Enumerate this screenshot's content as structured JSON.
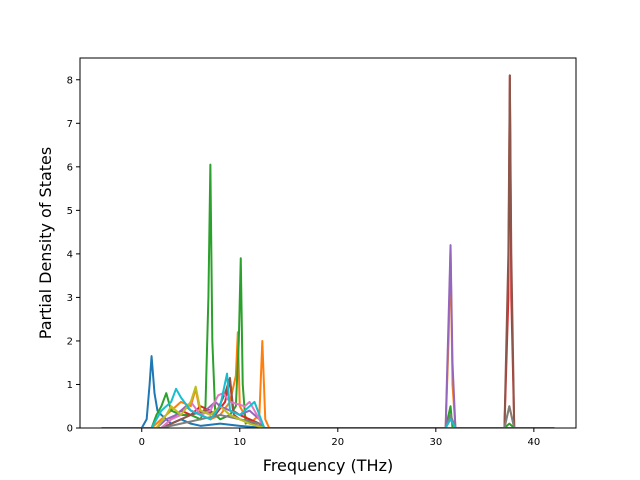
{
  "chart_data": {
    "type": "line",
    "xlabel": "Frequency (THz)",
    "ylabel": "Partial Density of States",
    "xlim": [
      -6.3,
      44.3
    ],
    "ylim": [
      0,
      8.5
    ],
    "x_ticks": [
      0,
      10,
      20,
      30,
      40
    ],
    "y_ticks": [
      0,
      1,
      2,
      3,
      4,
      5,
      6,
      7,
      8
    ],
    "grid": false,
    "legend": "none",
    "series": [
      {
        "color": "#1f77b4",
        "points": [
          [
            -4,
            0
          ],
          [
            0,
            0
          ],
          [
            0.5,
            0.2
          ],
          [
            0.8,
            1.0
          ],
          [
            1.0,
            1.65
          ],
          [
            1.3,
            0.8
          ],
          [
            1.6,
            0.4
          ],
          [
            2.0,
            0.3
          ],
          [
            3.0,
            0.1
          ],
          [
            4.0,
            0.2
          ],
          [
            5.0,
            0.1
          ],
          [
            6.0,
            0.05
          ],
          [
            8.0,
            0.1
          ],
          [
            10.0,
            0.05
          ],
          [
            12.5,
            0.0
          ],
          [
            31.0,
            0
          ],
          [
            31.5,
            0
          ],
          [
            32.0,
            0
          ],
          [
            37.0,
            0
          ],
          [
            37.6,
            0
          ],
          [
            38.0,
            0
          ],
          [
            42,
            0
          ]
        ]
      },
      {
        "color": "#ff7f0e",
        "points": [
          [
            -4,
            0
          ],
          [
            1.0,
            0
          ],
          [
            2.0,
            0.2
          ],
          [
            3.0,
            0.4
          ],
          [
            4.0,
            0.6
          ],
          [
            5.0,
            0.5
          ],
          [
            5.5,
            0.9
          ],
          [
            6.0,
            0.3
          ],
          [
            7.0,
            0.2
          ],
          [
            8.0,
            0.3
          ],
          [
            9.0,
            0.6
          ],
          [
            9.6,
            1.2
          ],
          [
            9.8,
            2.2
          ],
          [
            10.0,
            0.5
          ],
          [
            11.0,
            0.1
          ],
          [
            12.0,
            0.3
          ],
          [
            12.3,
            2.0
          ],
          [
            12.6,
            0.2
          ],
          [
            13.0,
            0
          ],
          [
            31.0,
            0
          ],
          [
            31.3,
            2.0
          ],
          [
            31.5,
            4.1
          ],
          [
            31.7,
            1.0
          ],
          [
            32.0,
            0
          ],
          [
            37.0,
            0
          ],
          [
            37.5,
            0.5
          ],
          [
            37.7,
            0.3
          ],
          [
            38.0,
            0
          ],
          [
            42,
            0
          ]
        ]
      },
      {
        "color": "#2ca02c",
        "points": [
          [
            -4,
            0
          ],
          [
            1.0,
            0
          ],
          [
            1.5,
            0.3
          ],
          [
            2.0,
            0.5
          ],
          [
            2.5,
            0.8
          ],
          [
            3.0,
            0.4
          ],
          [
            4.0,
            0.3
          ],
          [
            5.0,
            0.3
          ],
          [
            6.0,
            0.2
          ],
          [
            6.5,
            0.5
          ],
          [
            6.8,
            3.0
          ],
          [
            7.0,
            6.05
          ],
          [
            7.2,
            2.0
          ],
          [
            7.5,
            0.3
          ],
          [
            8.0,
            0.2
          ],
          [
            9.0,
            0.3
          ],
          [
            9.6,
            0.5
          ],
          [
            9.9,
            2.0
          ],
          [
            10.1,
            3.9
          ],
          [
            10.3,
            1.0
          ],
          [
            10.6,
            0.1
          ],
          [
            11.0,
            0.2
          ],
          [
            12.0,
            0.1
          ],
          [
            12.5,
            0
          ],
          [
            31.0,
            0
          ],
          [
            31.5,
            0.5
          ],
          [
            31.7,
            0
          ],
          [
            37.0,
            0
          ],
          [
            37.5,
            0.1
          ],
          [
            38.0,
            0
          ],
          [
            42,
            0
          ]
        ]
      },
      {
        "color": "#d62728",
        "points": [
          [
            -4,
            0
          ],
          [
            2.0,
            0
          ],
          [
            3.0,
            0.2
          ],
          [
            4.0,
            0.4
          ],
          [
            5.0,
            0.3
          ],
          [
            6.0,
            0.5
          ],
          [
            7.0,
            0.4
          ],
          [
            7.5,
            0.3
          ],
          [
            8.5,
            0.6
          ],
          [
            9.0,
            1.1
          ],
          [
            9.3,
            0.4
          ],
          [
            10.0,
            0.3
          ],
          [
            11.0,
            0.2
          ],
          [
            12.0,
            0.1
          ],
          [
            12.5,
            0
          ],
          [
            37.0,
            0
          ],
          [
            37.4,
            3.0
          ],
          [
            37.55,
            8.1
          ],
          [
            37.7,
            3.0
          ],
          [
            38.0,
            0
          ],
          [
            42,
            0
          ]
        ]
      },
      {
        "color": "#9467bd",
        "points": [
          [
            -4,
            0
          ],
          [
            1.5,
            0
          ],
          [
            2.5,
            0.2
          ],
          [
            3.5,
            0.3
          ],
          [
            4.5,
            0.5
          ],
          [
            5.0,
            0.4
          ],
          [
            6.0,
            0.3
          ],
          [
            7.5,
            0.6
          ],
          [
            8.0,
            0.5
          ],
          [
            9.0,
            0.4
          ],
          [
            10.0,
            0.3
          ],
          [
            11.0,
            0.4
          ],
          [
            12.0,
            0.2
          ],
          [
            12.5,
            0
          ],
          [
            31.0,
            0
          ],
          [
            31.3,
            2.5
          ],
          [
            31.5,
            4.2
          ],
          [
            31.7,
            1.5
          ],
          [
            32.0,
            0
          ],
          [
            42,
            0
          ]
        ]
      },
      {
        "color": "#8c564b",
        "points": [
          [
            -4,
            0
          ],
          [
            2.0,
            0
          ],
          [
            3.0,
            0.1
          ],
          [
            5.0,
            0.3
          ],
          [
            6.5,
            0.4
          ],
          [
            7.5,
            0.3
          ],
          [
            8.5,
            0.8
          ],
          [
            9.0,
            1.15
          ],
          [
            9.4,
            0.3
          ],
          [
            10.0,
            0.2
          ],
          [
            12.5,
            0
          ],
          [
            37.0,
            0
          ],
          [
            37.4,
            4.0
          ],
          [
            37.55,
            8.1
          ],
          [
            37.7,
            4.0
          ],
          [
            38.0,
            0
          ],
          [
            42,
            0
          ]
        ]
      },
      {
        "color": "#e377c2",
        "points": [
          [
            -4,
            0
          ],
          [
            2.0,
            0
          ],
          [
            3.0,
            0.2
          ],
          [
            4.0,
            0.3
          ],
          [
            5.0,
            0.6
          ],
          [
            6.0,
            0.3
          ],
          [
            7.0,
            0.4
          ],
          [
            7.8,
            0.75
          ],
          [
            8.3,
            0.8
          ],
          [
            9.0,
            0.6
          ],
          [
            10.5,
            0.5
          ],
          [
            11.0,
            0.6
          ],
          [
            12.0,
            0.2
          ],
          [
            12.5,
            0
          ],
          [
            42,
            0
          ]
        ]
      },
      {
        "color": "#7f7f7f",
        "points": [
          [
            -4,
            0
          ],
          [
            2.0,
            0
          ],
          [
            4.0,
            0.1
          ],
          [
            6.0,
            0.2
          ],
          [
            8.0,
            0.3
          ],
          [
            10.0,
            0.2
          ],
          [
            12.0,
            0.1
          ],
          [
            12.5,
            0
          ],
          [
            31.0,
            0
          ],
          [
            31.5,
            0.3
          ],
          [
            32.0,
            0
          ],
          [
            37.0,
            0
          ],
          [
            37.5,
            0.5
          ],
          [
            38.0,
            0
          ],
          [
            42,
            0
          ]
        ]
      },
      {
        "color": "#bcbd22",
        "points": [
          [
            -4,
            0
          ],
          [
            1.5,
            0
          ],
          [
            2.5,
            0.3
          ],
          [
            3.0,
            0.5
          ],
          [
            4.0,
            0.3
          ],
          [
            5.0,
            0.6
          ],
          [
            5.5,
            0.95
          ],
          [
            6.0,
            0.4
          ],
          [
            7.0,
            0.3
          ],
          [
            8.0,
            0.5
          ],
          [
            9.0,
            0.3
          ],
          [
            10.0,
            0.2
          ],
          [
            11.0,
            0.1
          ],
          [
            12.5,
            0
          ],
          [
            42,
            0
          ]
        ]
      },
      {
        "color": "#17becf",
        "points": [
          [
            -4,
            0
          ],
          [
            1.0,
            0
          ],
          [
            2.0,
            0.4
          ],
          [
            3.0,
            0.6
          ],
          [
            3.5,
            0.9
          ],
          [
            4.0,
            0.7
          ],
          [
            5.0,
            0.4
          ],
          [
            6.0,
            0.3
          ],
          [
            7.0,
            0.2
          ],
          [
            8.0,
            0.5
          ],
          [
            8.7,
            1.25
          ],
          [
            9.0,
            0.4
          ],
          [
            10.0,
            0.3
          ],
          [
            11.0,
            0.5
          ],
          [
            11.5,
            0.6
          ],
          [
            12.0,
            0.3
          ],
          [
            12.5,
            0
          ],
          [
            31.0,
            0
          ],
          [
            31.5,
            0.2
          ],
          [
            32.0,
            0
          ],
          [
            42,
            0
          ]
        ]
      }
    ]
  }
}
